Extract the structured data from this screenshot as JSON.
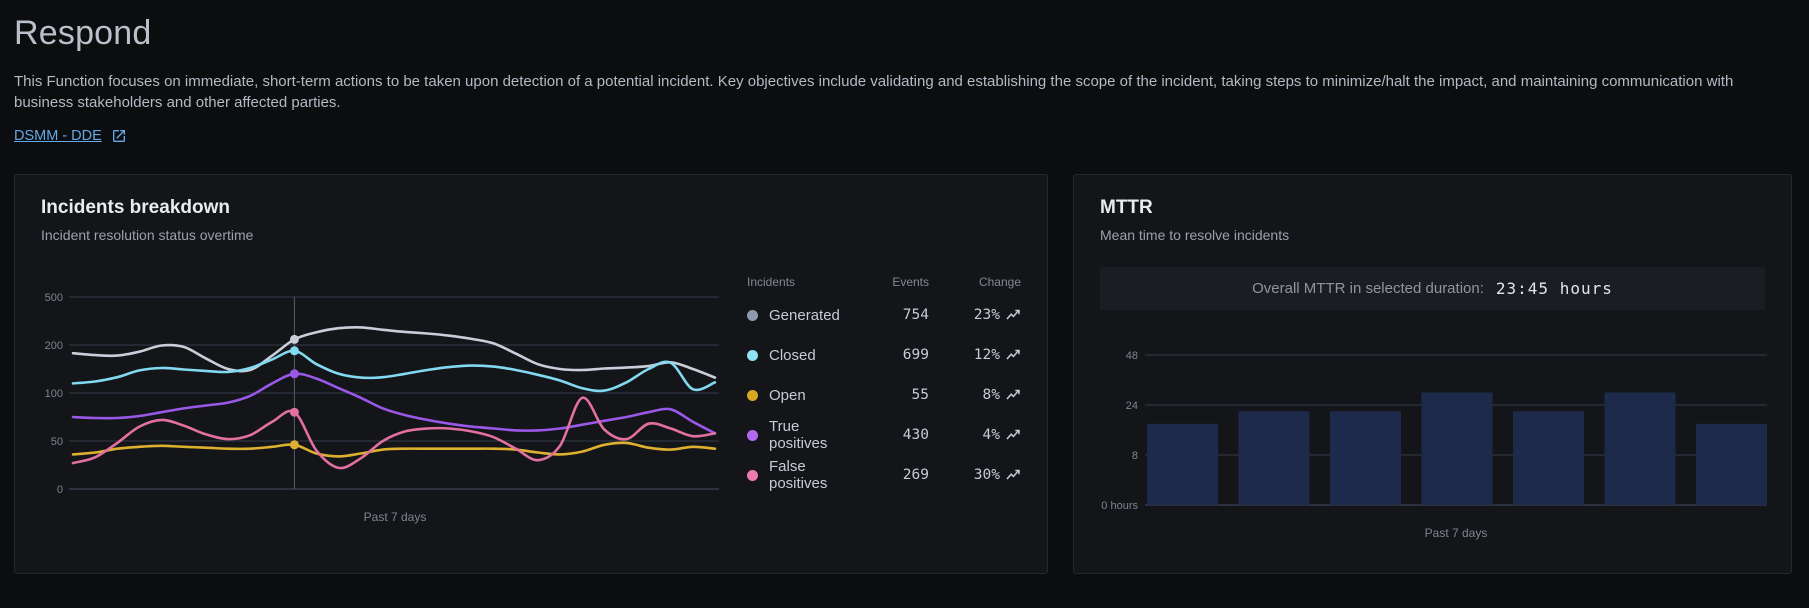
{
  "page": {
    "title": "Respond",
    "description": "This Function focuses on immediate, short-term actions to be taken upon detection of a potential incident. Key objectives include validating and establishing the scope of the incident, taking steps to minimize/halt the impact, and maintaining communication with business stakeholders and other affected parties.",
    "link_label": "DSMM - DDE"
  },
  "colors": {
    "link": "#64a9e8",
    "card_bg": "#141519",
    "banner_bg": "#1b1d23",
    "grid": "#343b47",
    "axis": "#49505e",
    "bar": "#1e2a4c",
    "crosshair": "#565d6b",
    "tick_text": "#7e8490"
  },
  "incidents_card": {
    "title": "Incidents breakdown",
    "subtitle": "Incident resolution status overtime",
    "legend": {
      "headers": [
        "Incidents",
        "Events",
        "Change"
      ],
      "rows": [
        {
          "label": "Generated",
          "color": "#8e99ad",
          "events": "754",
          "change": "23%"
        },
        {
          "label": "Closed",
          "color": "#8fe0f2",
          "events": "699",
          "change": "12%"
        },
        {
          "label": "Open",
          "color": "#d9a925",
          "events": "55",
          "change": "8%"
        },
        {
          "label": "True positives",
          "color": "#b269ef",
          "events": "430",
          "change": "4%"
        },
        {
          "label": "False positives",
          "color": "#ee7bb0",
          "events": "269",
          "change": "30%"
        }
      ]
    }
  },
  "mttr_card": {
    "title": "MTTR",
    "subtitle": "Mean time to resolve incidents",
    "overall_label": "Overall MTTR in selected duration:",
    "overall_value": "23:45 hours"
  },
  "chart_data": [
    {
      "type": "line",
      "title": "Incidents breakdown",
      "xlabel": "Past 7 days",
      "ylabel": "",
      "grid": true,
      "yticks": [
        0,
        50,
        100,
        200,
        500
      ],
      "crosshair_index": 10,
      "series": [
        {
          "name": "Generated",
          "color": "#c9ced8",
          "values": [
            183,
            179,
            178,
            186,
            199,
            196,
            172,
            150,
            148,
            178,
            235,
            280,
            305,
            310,
            295,
            282,
            272,
            258,
            238,
            210,
            182,
            160,
            150,
            148,
            151,
            153,
            156,
            164,
            150,
            132
          ]
        },
        {
          "name": "Closed",
          "color": "#82d9f0",
          "values": [
            120,
            124,
            133,
            147,
            152,
            149,
            146,
            144,
            152,
            170,
            188,
            160,
            140,
            132,
            133,
            140,
            148,
            154,
            157,
            155,
            148,
            138,
            126,
            110,
            105,
            122,
            150,
            163,
            108,
            122
          ]
        },
        {
          "name": "Open",
          "color": "#ddb12f",
          "values": [
            36,
            38,
            42,
            44,
            45,
            44,
            43,
            42,
            42,
            44,
            46,
            37,
            34,
            37,
            41,
            42,
            42,
            42,
            42,
            42,
            41,
            38,
            36,
            39,
            46,
            48,
            43,
            41,
            44,
            42
          ]
        },
        {
          "name": "True positives",
          "color": "#9a58e8",
          "values": [
            75,
            74,
            74,
            76,
            80,
            84,
            87,
            90,
            97,
            120,
            140,
            130,
            110,
            95,
            84,
            77,
            72,
            68,
            65,
            63,
            61,
            61,
            63,
            67,
            71,
            75,
            80,
            83,
            70,
            58
          ]
        },
        {
          "name": "False positives",
          "color": "#e2719f",
          "values": [
            27,
            33,
            48,
            65,
            72,
            66,
            57,
            52,
            56,
            70,
            80,
            40,
            22,
            32,
            50,
            60,
            63,
            63,
            60,
            54,
            42,
            30,
            45,
            95,
            62,
            52,
            68,
            63,
            55,
            58
          ]
        }
      ]
    },
    {
      "type": "bar",
      "title": "MTTR",
      "xlabel": "Past 7 days",
      "ylabel": "hours",
      "grid": true,
      "yticks": [
        0,
        8,
        24,
        48
      ],
      "ytick_labels": [
        "0 hours",
        "8",
        "24",
        "48"
      ],
      "values": [
        18,
        22,
        22,
        30,
        22,
        30,
        18
      ]
    }
  ]
}
